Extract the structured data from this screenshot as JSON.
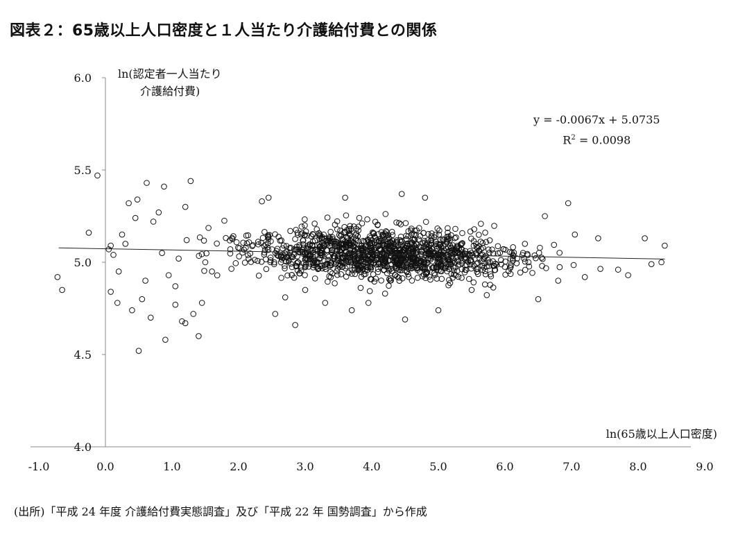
{
  "title": "図表２：65歳以上人口密度と１人当たり介護給付費との関係",
  "source": "(出所)「平成 24 年度 介護給付費実態調査」及び「平成 22 年 国勢調査」から作成",
  "chart_data": {
    "type": "scatter",
    "xlabel": "ln(65歳以上人口密度)",
    "ylabel_line1": "ln(認定者一人当たり",
    "ylabel_line2": "介護給付費)",
    "xlim": [
      -1.0,
      9.0
    ],
    "ylim": [
      4.0,
      6.0
    ],
    "x_ticks": [
      "-1.0",
      "0.0",
      "1.0",
      "2.0",
      "3.0",
      "4.0",
      "5.0",
      "6.0",
      "7.0",
      "8.0",
      "9.0"
    ],
    "y_ticks": [
      "4.0",
      "4.5",
      "5.0",
      "5.5",
      "6.0"
    ],
    "grid": false,
    "marker": "open-circle",
    "trendline": {
      "slope": -0.0067,
      "intercept": 5.0735,
      "x_range": [
        -0.65,
        8.4
      ]
    },
    "equation": "y = -0.0067x + 5.0735",
    "r2_label": "R",
    "r2_value": "= 0.0098",
    "points": [
      [
        -0.72,
        4.92
      ],
      [
        -0.65,
        4.85
      ],
      [
        -0.25,
        5.16
      ],
      [
        -0.12,
        5.47
      ],
      [
        0.05,
        5.07
      ],
      [
        0.08,
        5.09
      ],
      [
        0.12,
        5.04
      ],
      [
        0.08,
        4.84
      ],
      [
        0.2,
        4.95
      ],
      [
        0.25,
        5.15
      ],
      [
        0.35,
        5.32
      ],
      [
        0.45,
        5.24
      ],
      [
        0.48,
        5.34
      ],
      [
        0.5,
        4.52
      ],
      [
        0.62,
        5.43
      ],
      [
        0.68,
        4.7
      ],
      [
        0.72,
        5.22
      ],
      [
        0.8,
        5.27
      ],
      [
        0.88,
        5.41
      ],
      [
        0.9,
        4.58
      ],
      [
        1.05,
        4.87
      ],
      [
        1.1,
        5.02
      ],
      [
        1.2,
        4.67
      ],
      [
        1.28,
        5.44
      ],
      [
        1.32,
        4.72
      ],
      [
        1.4,
        4.6
      ],
      [
        1.45,
        4.78
      ],
      [
        1.2,
        5.3
      ],
      [
        0.4,
        4.74
      ],
      [
        0.55,
        4.8
      ],
      [
        0.95,
        4.93
      ],
      [
        1.15,
        4.68
      ],
      [
        1.6,
        4.95
      ],
      [
        0.3,
        5.1
      ],
      [
        0.6,
        4.9
      ],
      [
        0.85,
        5.05
      ],
      [
        1.05,
        4.77
      ],
      [
        1.22,
        5.12
      ],
      [
        1.5,
        5.0
      ],
      [
        0.18,
        4.78
      ],
      [
        2.35,
        5.33
      ],
      [
        2.45,
        5.35
      ],
      [
        2.55,
        4.72
      ],
      [
        2.85,
        4.66
      ],
      [
        3.0,
        4.85
      ],
      [
        3.6,
        5.35
      ],
      [
        3.7,
        4.74
      ],
      [
        4.45,
        5.37
      ],
      [
        4.5,
        4.69
      ],
      [
        4.8,
        5.35
      ],
      [
        5.05,
        4.91
      ],
      [
        5.5,
        4.85
      ],
      [
        6.3,
        5.1
      ],
      [
        6.5,
        4.8
      ],
      [
        6.6,
        5.25
      ],
      [
        6.95,
        5.32
      ],
      [
        7.05,
        5.15
      ],
      [
        7.4,
        5.13
      ],
      [
        8.1,
        5.13
      ],
      [
        8.4,
        5.09
      ],
      [
        8.35,
        5.0
      ],
      [
        8.2,
        4.99
      ],
      [
        7.85,
        4.93
      ],
      [
        7.7,
        4.96
      ],
      [
        2.7,
        4.81
      ],
      [
        3.3,
        4.78
      ],
      [
        3.95,
        4.78
      ],
      [
        4.2,
        4.83
      ],
      [
        5.0,
        4.74
      ],
      [
        5.7,
        4.88
      ],
      [
        6.8,
        4.9
      ],
      [
        7.2,
        4.92
      ]
    ]
  }
}
